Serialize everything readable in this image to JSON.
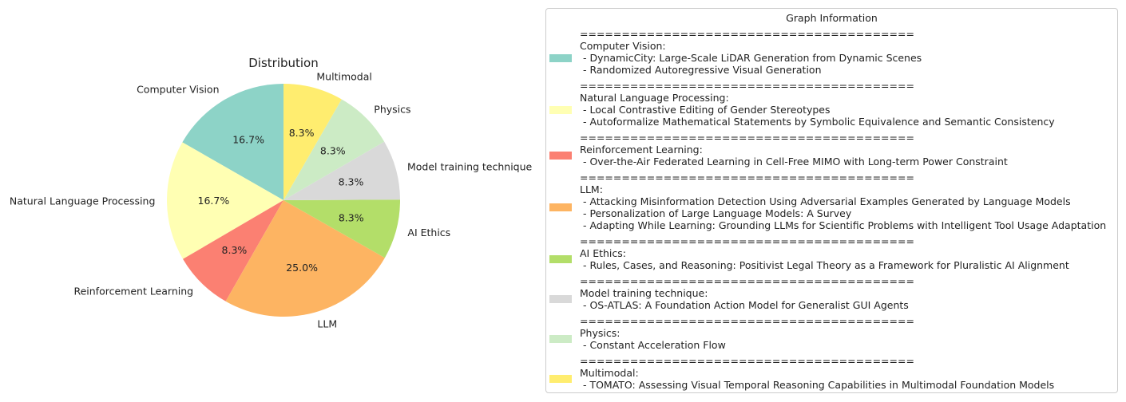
{
  "chart_data": {
    "type": "pie",
    "title": "Distribution",
    "slices": [
      {
        "label": "Computer Vision",
        "value": 16.7,
        "pct_label": "16.7%",
        "color": "#8dd3c7"
      },
      {
        "label": "Natural Language Processing",
        "value": 16.7,
        "pct_label": "16.7%",
        "color": "#ffffb3"
      },
      {
        "label": "Reinforcement Learning",
        "value": 8.3,
        "pct_label": "8.3%",
        "color": "#fb8072"
      },
      {
        "label": "LLM",
        "value": 25.0,
        "pct_label": "25.0%",
        "color": "#fdb462"
      },
      {
        "label": "AI Ethics",
        "value": 8.3,
        "pct_label": "8.3%",
        "color": "#b3de69"
      },
      {
        "label": "Model training technique",
        "value": 8.3,
        "pct_label": "8.3%",
        "color": "#d9d9d9"
      },
      {
        "label": "Physics",
        "value": 8.3,
        "pct_label": "8.3%",
        "color": "#ccebc5"
      },
      {
        "label": "Multimodal",
        "value": 8.3,
        "pct_label": "8.3%",
        "color": "#ffed6f"
      }
    ]
  },
  "legend": {
    "title": "Graph Information",
    "separator": "========================================",
    "entries": [
      {
        "category": "Computer Vision:",
        "color": "#8dd3c7",
        "papers": [
          " - DynamicCity: Large-Scale LiDAR Generation from Dynamic Scenes",
          " - Randomized Autoregressive Visual Generation"
        ]
      },
      {
        "category": "Natural Language Processing:",
        "color": "#ffffb3",
        "papers": [
          " - Local Contrastive Editing of Gender Stereotypes",
          " - Autoformalize Mathematical Statements by Symbolic Equivalence and Semantic Consistency"
        ]
      },
      {
        "category": "Reinforcement Learning:",
        "color": "#fb8072",
        "papers": [
          " - Over-the-Air Federated Learning in Cell-Free MIMO with Long-term Power Constraint"
        ]
      },
      {
        "category": "LLM:",
        "color": "#fdb462",
        "papers": [
          " - Attacking Misinformation Detection Using Adversarial Examples Generated by Language Models",
          " - Personalization of Large Language Models: A Survey",
          " - Adapting While Learning: Grounding LLMs for Scientific Problems with Intelligent Tool Usage Adaptation"
        ]
      },
      {
        "category": "AI Ethics:",
        "color": "#b3de69",
        "papers": [
          " - Rules, Cases, and Reasoning: Positivist Legal Theory as a Framework for Pluralistic AI Alignment"
        ]
      },
      {
        "category": "Model training technique:",
        "color": "#d9d9d9",
        "papers": [
          " - OS-ATLAS: A Foundation Action Model for Generalist GUI Agents"
        ]
      },
      {
        "category": "Physics:",
        "color": "#ccebc5",
        "papers": [
          " - Constant Acceleration Flow"
        ]
      },
      {
        "category": "Multimodal:",
        "color": "#ffed6f",
        "papers": [
          " - TOMATO: Assessing Visual Temporal Reasoning Capabilities in Multimodal Foundation Models"
        ]
      }
    ]
  }
}
